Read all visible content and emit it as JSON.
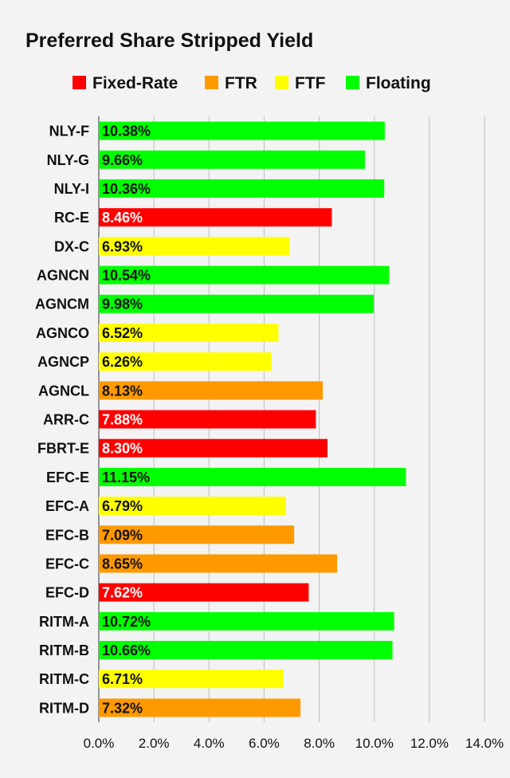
{
  "chart_data": {
    "type": "bar",
    "orientation": "horizontal",
    "title": "Preferred Share Stripped Yield",
    "xlim": [
      0,
      14
    ],
    "x_ticks": [
      0,
      2,
      4,
      6,
      8,
      10,
      12,
      14
    ],
    "x_tick_labels": [
      "0.0%",
      "2.0%",
      "4.0%",
      "6.0%",
      "8.0%",
      "10.0%",
      "12.0%",
      "14.0%"
    ],
    "grid": "vertical",
    "legend_position": "top",
    "legend": [
      {
        "name": "Fixed-Rate",
        "color": "#ff0000"
      },
      {
        "name": "FTR",
        "color": "#ff9900"
      },
      {
        "name": "FTF",
        "color": "#ffff00"
      },
      {
        "name": "Floating",
        "color": "#00ff00"
      }
    ],
    "bars": [
      {
        "category": "NLY-F",
        "value": 10.38,
        "label": "10.38%",
        "type": "Floating"
      },
      {
        "category": "NLY-G",
        "value": 9.66,
        "label": "9.66%",
        "type": "Floating"
      },
      {
        "category": "NLY-I",
        "value": 10.36,
        "label": "10.36%",
        "type": "Floating"
      },
      {
        "category": "RC-E",
        "value": 8.46,
        "label": "8.46%",
        "type": "Fixed-Rate"
      },
      {
        "category": "DX-C",
        "value": 6.93,
        "label": "6.93%",
        "type": "FTF"
      },
      {
        "category": "AGNCN",
        "value": 10.54,
        "label": "10.54%",
        "type": "Floating"
      },
      {
        "category": "AGNCM",
        "value": 9.98,
        "label": "9.98%",
        "type": "Floating"
      },
      {
        "category": "AGNCO",
        "value": 6.52,
        "label": "6.52%",
        "type": "FTF"
      },
      {
        "category": "AGNCP",
        "value": 6.26,
        "label": "6.26%",
        "type": "FTF"
      },
      {
        "category": "AGNCL",
        "value": 8.13,
        "label": "8.13%",
        "type": "FTR"
      },
      {
        "category": "ARR-C",
        "value": 7.88,
        "label": "7.88%",
        "type": "Fixed-Rate"
      },
      {
        "category": "FBRT-E",
        "value": 8.3,
        "label": "8.30%",
        "type": "Fixed-Rate"
      },
      {
        "category": "EFC-E",
        "value": 11.15,
        "label": "11.15%",
        "type": "Floating"
      },
      {
        "category": "EFC-A",
        "value": 6.79,
        "label": "6.79%",
        "type": "FTF"
      },
      {
        "category": "EFC-B",
        "value": 7.09,
        "label": "7.09%",
        "type": "FTR"
      },
      {
        "category": "EFC-C",
        "value": 8.65,
        "label": "8.65%",
        "type": "FTR"
      },
      {
        "category": "EFC-D",
        "value": 7.62,
        "label": "7.62%",
        "type": "Fixed-Rate"
      },
      {
        "category": "RITM-A",
        "value": 10.72,
        "label": "10.72%",
        "type": "Floating"
      },
      {
        "category": "RITM-B",
        "value": 10.66,
        "label": "10.66%",
        "type": "Floating"
      },
      {
        "category": "RITM-C",
        "value": 6.71,
        "label": "6.71%",
        "type": "FTF"
      },
      {
        "category": "RITM-D",
        "value": 7.32,
        "label": "7.32%",
        "type": "FTR"
      }
    ]
  }
}
